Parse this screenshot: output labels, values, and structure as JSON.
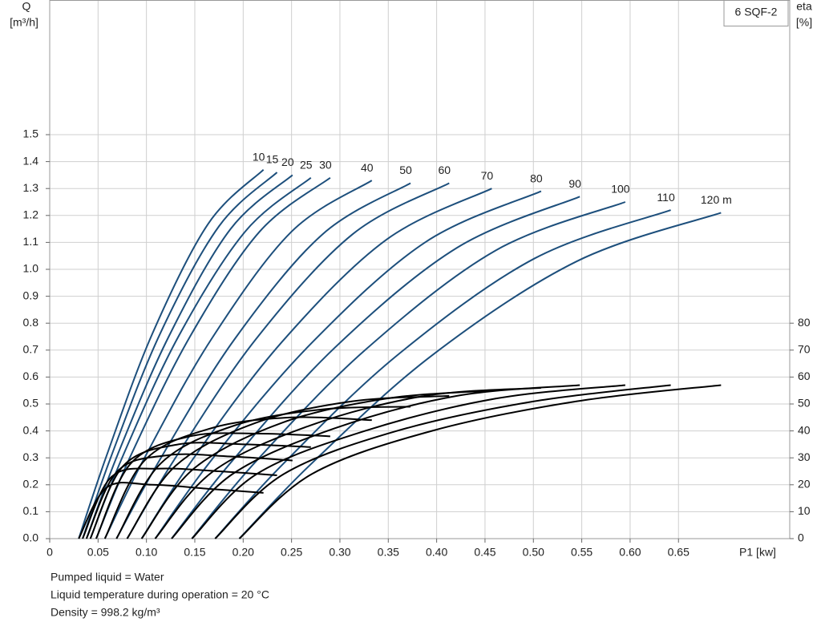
{
  "chart_data": {
    "type": "line",
    "title": "6 SQF-2",
    "ylabel": [
      "Q",
      "[m³/h]"
    ],
    "y2label": [
      "eta",
      "[%]"
    ],
    "xlabel": "P1 [kw]",
    "xlim": [
      0,
      0.765
    ],
    "ylim": [
      0,
      2.0
    ],
    "y2lim": [
      0,
      200
    ],
    "grid": true,
    "xticks": [
      0,
      0.05,
      {
        "value": 0.1,
        "label": "0.10"
      },
      0.15,
      {
        "value": 0.2,
        "label": "0.20"
      },
      0.25,
      {
        "value": 0.3,
        "label": "0.30"
      },
      0.35,
      {
        "value": 0.4,
        "label": "0.40"
      },
      0.45,
      {
        "value": 0.5,
        "label": "0.50"
      },
      0.55,
      {
        "value": 0.6,
        "label": "0.60"
      },
      0.65
    ],
    "yticks": [
      {
        "value": 0,
        "label": "0.0"
      },
      0.1,
      0.2,
      0.3,
      0.4,
      0.5,
      0.6,
      0.7,
      0.8,
      0.9,
      {
        "value": 1,
        "label": "1.0"
      },
      1.1,
      1.2,
      1.3,
      1.4,
      1.5
    ],
    "y2ticks": [
      0,
      10,
      20,
      30,
      40,
      50,
      60,
      70,
      80
    ],
    "series": [
      {
        "name": "10",
        "color": "#1d4f7c",
        "x": [
          0.03,
          0.059,
          0.106,
          0.164,
          0.221
        ],
        "values": [
          0,
          0.31,
          0.76,
          1.17,
          1.37
        ]
      },
      {
        "name": "15",
        "color": "#1d4f7c",
        "x": [
          0.034,
          0.064,
          0.114,
          0.175,
          0.235
        ],
        "values": [
          0,
          0.31,
          0.76,
          1.16,
          1.36
        ]
      },
      {
        "name": "20",
        "color": "#1d4f7c",
        "x": [
          0.038,
          0.07,
          0.123,
          0.187,
          0.251
        ],
        "values": [
          0,
          0.31,
          0.75,
          1.15,
          1.35
        ]
      },
      {
        "name": "25",
        "color": "#1d4f7c",
        "x": [
          0.042,
          0.076,
          0.133,
          0.202,
          0.27
        ],
        "values": [
          0,
          0.31,
          0.75,
          1.14,
          1.34
        ]
      },
      {
        "name": "30",
        "color": "#1d4f7c",
        "x": [
          0.048,
          0.084,
          0.145,
          0.217,
          0.29
        ],
        "values": [
          0,
          0.31,
          0.75,
          1.14,
          1.34
        ]
      },
      {
        "name": "40",
        "color": "#1d4f7c",
        "x": [
          0.057,
          0.098,
          0.167,
          0.25,
          0.333
        ],
        "values": [
          0,
          0.3,
          0.74,
          1.14,
          1.33
        ]
      },
      {
        "name": "50",
        "color": "#1d4f7c",
        "x": [
          0.069,
          0.115,
          0.191,
          0.282,
          0.373
        ],
        "values": [
          0,
          0.3,
          0.74,
          1.13,
          1.32
        ]
      },
      {
        "name": "60",
        "color": "#1d4f7c",
        "x": [
          0.08,
          0.13,
          0.213,
          0.313,
          0.413
        ],
        "values": [
          0,
          0.3,
          0.74,
          1.13,
          1.32
        ]
      },
      {
        "name": "70",
        "color": "#1d4f7c",
        "x": [
          0.095,
          0.149,
          0.24,
          0.348,
          0.457
        ],
        "values": [
          0,
          0.3,
          0.73,
          1.11,
          1.3
        ]
      },
      {
        "name": "80",
        "color": "#1d4f7c",
        "x": [
          0.109,
          0.169,
          0.269,
          0.388,
          0.508
        ],
        "values": [
          0,
          0.3,
          0.72,
          1.1,
          1.29
        ]
      },
      {
        "name": "90",
        "color": "#1d4f7c",
        "x": [
          0.126,
          0.189,
          0.295,
          0.421,
          0.548
        ],
        "values": [
          0,
          0.29,
          0.71,
          1.08,
          1.27
        ]
      },
      {
        "name": "100",
        "color": "#1d4f7c",
        "x": [
          0.147,
          0.214,
          0.326,
          0.461,
          0.595
        ],
        "values": [
          0,
          0.29,
          0.7,
          1.07,
          1.25
        ]
      },
      {
        "name": "110",
        "color": "#1d4f7c",
        "x": [
          0.171,
          0.242,
          0.359,
          0.501,
          0.642
        ],
        "values": [
          0,
          0.28,
          0.68,
          1.04,
          1.22
        ]
      },
      {
        "name": "120 m",
        "color": "#1d4f7c",
        "x": [
          0.196,
          0.271,
          0.395,
          0.545,
          0.694
        ],
        "values": [
          0,
          0.28,
          0.68,
          1.03,
          1.21
        ]
      },
      {
        "color": "#000000",
        "axis": "y2",
        "x": [
          0.03,
          0.059,
          0.106,
          0.164,
          0.221
        ],
        "values": [
          0,
          19,
          20,
          18.5,
          17
        ]
      },
      {
        "color": "#000000",
        "axis": "y2",
        "x": [
          0.034,
          0.064,
          0.114,
          0.175,
          0.235
        ],
        "values": [
          0,
          23,
          26,
          25,
          23.5
        ]
      },
      {
        "color": "#000000",
        "axis": "y2",
        "x": [
          0.038,
          0.07,
          0.123,
          0.187,
          0.251
        ],
        "values": [
          0,
          25,
          31,
          30.5,
          29
        ]
      },
      {
        "color": "#000000",
        "axis": "y2",
        "x": [
          0.042,
          0.076,
          0.133,
          0.202,
          0.27
        ],
        "values": [
          0,
          27,
          35,
          35,
          34
        ]
      },
      {
        "color": "#000000",
        "axis": "y2",
        "x": [
          0.048,
          0.084,
          0.145,
          0.217,
          0.29
        ],
        "values": [
          0,
          28,
          38,
          39,
          38
        ]
      },
      {
        "color": "#000000",
        "axis": "y2",
        "x": [
          0.057,
          0.098,
          0.167,
          0.25,
          0.333
        ],
        "values": [
          0,
          29,
          41,
          45,
          44
        ]
      },
      {
        "color": "#000000",
        "axis": "y2",
        "x": [
          0.069,
          0.115,
          0.191,
          0.282,
          0.373
        ],
        "values": [
          0,
          28,
          42,
          48,
          49
        ]
      },
      {
        "color": "#000000",
        "axis": "y2",
        "x": [
          0.08,
          0.13,
          0.213,
          0.313,
          0.413
        ],
        "values": [
          0,
          27,
          43,
          51,
          53
        ]
      },
      {
        "color": "#000000",
        "axis": "y2",
        "x": [
          0.095,
          0.149,
          0.24,
          0.348,
          0.457
        ],
        "values": [
          0,
          26,
          43,
          52,
          55
        ]
      },
      {
        "color": "#000000",
        "axis": "y2",
        "x": [
          0.109,
          0.169,
          0.269,
          0.388,
          0.508
        ],
        "values": [
          0,
          25,
          42,
          53,
          56
        ]
      },
      {
        "color": "#000000",
        "axis": "y2",
        "x": [
          0.126,
          0.189,
          0.295,
          0.421,
          0.548
        ],
        "values": [
          0,
          24,
          41,
          53,
          57
        ]
      },
      {
        "color": "#000000",
        "axis": "y2",
        "x": [
          0.147,
          0.214,
          0.326,
          0.461,
          0.595
        ],
        "values": [
          0,
          24,
          40,
          52,
          57
        ]
      },
      {
        "color": "#000000",
        "axis": "y2",
        "x": [
          0.171,
          0.242,
          0.359,
          0.501,
          0.642
        ],
        "values": [
          0,
          24,
          40,
          51,
          57
        ]
      },
      {
        "color": "#000000",
        "axis": "y2",
        "x": [
          0.196,
          0.271,
          0.395,
          0.545,
          0.694
        ],
        "values": [
          0,
          24,
          40,
          51,
          57
        ]
      }
    ],
    "notes": [
      "Pumped liquid = Water",
      "Liquid temperature during operation = 20 °C",
      "Density = 998.2 kg/m³"
    ]
  }
}
